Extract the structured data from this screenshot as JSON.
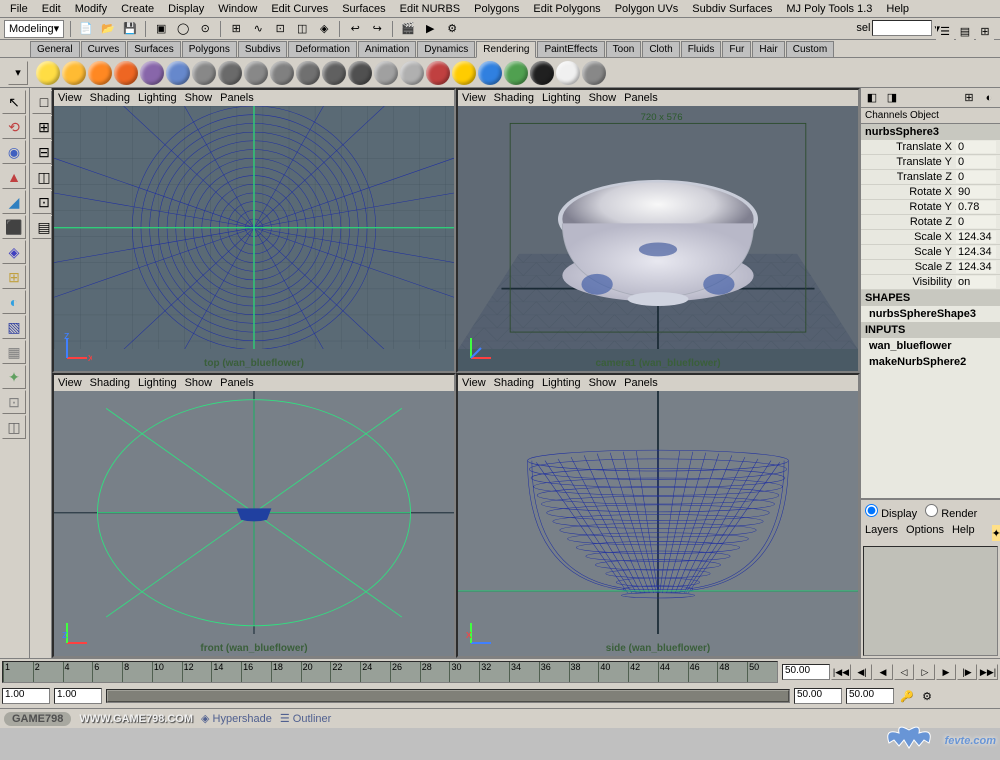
{
  "menus": [
    "File",
    "Edit",
    "Modify",
    "Create",
    "Display",
    "Window",
    "Edit Curves",
    "Surfaces",
    "Edit NURBS",
    "Polygons",
    "Edit Polygons",
    "Polygon UVs",
    "Subdiv Surfaces",
    "MJ Poly Tools 1.3",
    "Help"
  ],
  "mode_dropdown": "Modeling",
  "sel_label": "sel",
  "shelf_tabs": [
    "General",
    "Curves",
    "Surfaces",
    "Polygons",
    "Subdivs",
    "Deformation",
    "Animation",
    "Dynamics",
    "Rendering",
    "PaintEffects",
    "Toon",
    "Cloth",
    "Fluids",
    "Fur",
    "Hair",
    "Custom"
  ],
  "active_shelf_tab": 8,
  "shelf_colors": [
    "#ffdd44",
    "#ffbb33",
    "#ff8822",
    "#ee6622",
    "#8866aa",
    "#6688cc",
    "#888888",
    "#6a6a6a",
    "#888888",
    "#808080",
    "#707070",
    "#606060",
    "#505050",
    "#a0a0a0",
    "#b0b0b0",
    "#c04040",
    "#ffcc00",
    "#3080e0",
    "#50a050",
    "#202020",
    "#f0f0f0",
    "#888888"
  ],
  "vp_menu": [
    "View",
    "Shading",
    "Lighting",
    "Show",
    "Panels"
  ],
  "viewports": {
    "tl": {
      "label": "top (wan_blueflower)",
      "bg": "#5a6a75"
    },
    "tr": {
      "label": "camera1 (wan_blueflower)",
      "res": "720 x 576",
      "bg": "#4a5a65"
    },
    "bl": {
      "label": "front (wan_blueflower)",
      "bg": "#788088"
    },
    "br": {
      "label": "side (wan_blueflower)",
      "bg": "#788088"
    }
  },
  "channels": {
    "header": "Channels Object",
    "object": "nurbsSphere3",
    "attrs": [
      {
        "n": "Translate X",
        "v": "0"
      },
      {
        "n": "Translate Y",
        "v": "0"
      },
      {
        "n": "Translate Z",
        "v": "0"
      },
      {
        "n": "Rotate X",
        "v": "90"
      },
      {
        "n": "Rotate Y",
        "v": "0.78"
      },
      {
        "n": "Rotate Z",
        "v": "0"
      },
      {
        "n": "Scale X",
        "v": "124.34"
      },
      {
        "n": "Scale Y",
        "v": "124.34"
      },
      {
        "n": "Scale Z",
        "v": "124.34"
      },
      {
        "n": "Visibility",
        "v": "on"
      }
    ],
    "shapes_label": "SHAPES",
    "shape": "nurbsSphereShape3",
    "inputs_label": "INPUTS",
    "inputs": [
      "wan_blueflower",
      "makeNurbSphere2"
    ]
  },
  "layer_panel": {
    "display": "Display",
    "render": "Render",
    "menu": [
      "Layers",
      "Options",
      "Help"
    ]
  },
  "timeline": {
    "ticks": [
      1,
      2,
      4,
      6,
      8,
      10,
      12,
      14,
      16,
      18,
      20,
      22,
      24,
      26,
      28,
      30,
      32,
      34,
      36,
      38,
      40,
      42,
      44,
      46,
      48,
      50
    ],
    "start": "1.00",
    "start2": "1.00",
    "end": "50.00",
    "end2": "50.00",
    "cur": "50.00"
  },
  "status": {
    "game798": "GAME798",
    "url": "WWW.GAME798.COM",
    "hypershade": "Hypershade",
    "outliner": "Outliner"
  },
  "watermark": "fevte.com",
  "tool_glyphs": [
    "↖",
    "⟲",
    "◉",
    "▲",
    "◢",
    "⬛",
    "◈",
    "⊞",
    "◐",
    "▧",
    "▦",
    "✦",
    "⊡",
    "◫"
  ],
  "axis_colors": {
    "x": "#ff4040",
    "y": "#40ff40",
    "z": "#4080ff"
  }
}
